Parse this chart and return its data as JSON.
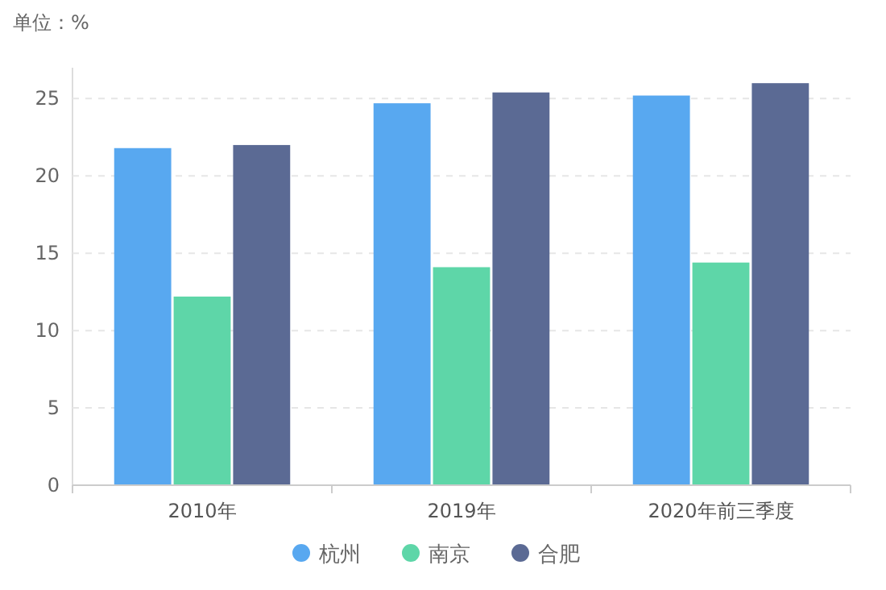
{
  "chart_data": {
    "type": "bar",
    "title": "单位：%",
    "categories": [
      "2010年",
      "2019年",
      "2020年前三季度"
    ],
    "series": [
      {
        "name": "杭州",
        "color": "#58a8f0",
        "values": [
          21.8,
          24.7,
          25.2
        ]
      },
      {
        "name": "南京",
        "color": "#5ed6a8",
        "values": [
          12.2,
          14.1,
          14.4
        ]
      },
      {
        "name": "合肥",
        "color": "#5b6a94",
        "values": [
          22.0,
          25.4,
          26.0
        ]
      }
    ],
    "ylim": [
      0,
      27
    ],
    "yticks": [
      0,
      5,
      10,
      15,
      20,
      25
    ],
    "grid": "y",
    "legend": "bottom"
  }
}
